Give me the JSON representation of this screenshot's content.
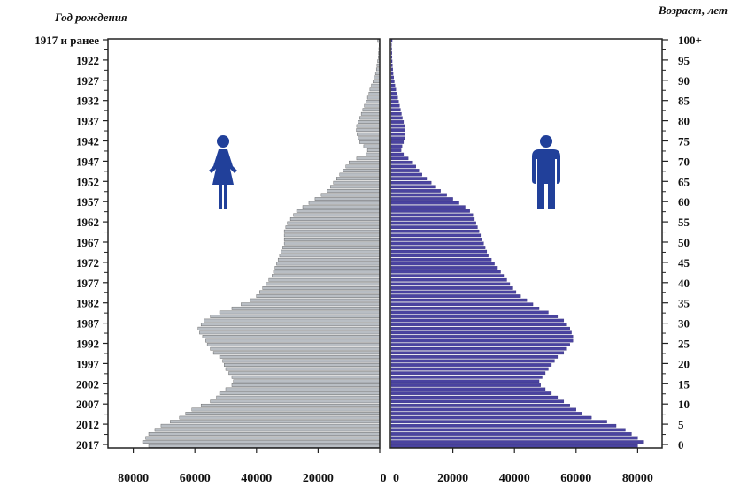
{
  "chart_data": {
    "type": "bar",
    "orientation": "horizontal",
    "layout": "population-pyramid",
    "left_axis_title": "Год рождения",
    "right_axis_title": "Возраст, лет",
    "left_tick_labels": [
      "1917 и ранее",
      "1922",
      "1927",
      "1932",
      "1937",
      "1942",
      "1947",
      "1952",
      "1957",
      "1962",
      "1967",
      "1972",
      "1977",
      "1982",
      "1987",
      "1992",
      "1997",
      "2002",
      "2007",
      "2012",
      "2017"
    ],
    "right_tick_labels": [
      "100+",
      "95",
      "90",
      "85",
      "80",
      "75",
      "70",
      "65",
      "60",
      "55",
      "50",
      "45",
      "40",
      "35",
      "30",
      "25",
      "20",
      "15",
      "10",
      "5",
      "0"
    ],
    "x_tick_labels_left": [
      "80000",
      "60000",
      "40000",
      "20000",
      "0"
    ],
    "x_tick_labels_right": [
      "0",
      "20000",
      "40000",
      "60000",
      "80000"
    ],
    "xlim": [
      0,
      85000
    ],
    "ages": [
      100,
      99,
      98,
      97,
      96,
      95,
      94,
      93,
      92,
      91,
      90,
      89,
      88,
      87,
      86,
      85,
      84,
      83,
      82,
      81,
      80,
      79,
      78,
      77,
      76,
      75,
      74,
      73,
      72,
      71,
      70,
      69,
      68,
      67,
      66,
      65,
      64,
      63,
      62,
      61,
      60,
      59,
      58,
      57,
      56,
      55,
      54,
      53,
      52,
      51,
      50,
      49,
      48,
      47,
      46,
      45,
      44,
      43,
      42,
      41,
      40,
      39,
      38,
      37,
      36,
      35,
      34,
      33,
      32,
      31,
      30,
      29,
      28,
      27,
      26,
      25,
      24,
      23,
      22,
      21,
      20,
      19,
      18,
      17,
      16,
      15,
      14,
      13,
      12,
      11,
      10,
      9,
      8,
      7,
      6,
      5,
      4,
      3,
      2,
      1,
      0
    ],
    "series": [
      {
        "name": "Женщины",
        "color": "#b9bec4",
        "values": [
          700,
          200,
          300,
          400,
          500,
          700,
          900,
          1100,
          1400,
          1800,
          2200,
          2700,
          3200,
          3500,
          4000,
          4500,
          5000,
          5500,
          6000,
          6500,
          7000,
          7500,
          7600,
          7400,
          7000,
          6500,
          5200,
          4000,
          4500,
          7500,
          10000,
          11000,
          12000,
          13000,
          14000,
          15000,
          16000,
          17000,
          19000,
          21000,
          23000,
          25000,
          27000,
          28000,
          29000,
          30000,
          30500,
          31000,
          31000,
          31000,
          31000,
          31500,
          32000,
          32500,
          33000,
          33500,
          34000,
          34500,
          35000,
          36000,
          37000,
          38000,
          39000,
          40000,
          42000,
          45000,
          48000,
          52000,
          55000,
          57000,
          58000,
          59000,
          58500,
          57500,
          56500,
          56000,
          55000,
          54000,
          52000,
          51000,
          50500,
          50000,
          49000,
          48000,
          47500,
          48000,
          50000,
          52000,
          53000,
          55000,
          58000,
          61000,
          63000,
          65000,
          68000,
          71000,
          73000,
          75000,
          76000,
          77000,
          75000
        ]
      },
      {
        "name": "Мужчины",
        "color": "#4a43a0",
        "values": [
          300,
          100,
          150,
          200,
          250,
          300,
          400,
          500,
          600,
          800,
          1000,
          1200,
          1500,
          1800,
          2100,
          2400,
          2700,
          3000,
          3300,
          3600,
          4000,
          4300,
          4500,
          4500,
          4300,
          4000,
          3500,
          3200,
          4000,
          5500,
          7000,
          8000,
          9000,
          10000,
          11500,
          13000,
          14500,
          16000,
          18000,
          20000,
          22000,
          24000,
          25500,
          26500,
          27000,
          27500,
          28000,
          28500,
          29000,
          29500,
          30000,
          30500,
          31000,
          31500,
          32500,
          33500,
          34500,
          35500,
          36500,
          37500,
          38500,
          39500,
          40500,
          42000,
          44000,
          46000,
          48000,
          51000,
          54000,
          56000,
          57000,
          58000,
          58500,
          59000,
          59000,
          58000,
          57000,
          56000,
          54000,
          53000,
          52000,
          51000,
          50000,
          49000,
          48000,
          48500,
          50000,
          52000,
          54000,
          56000,
          58000,
          60000,
          62000,
          65000,
          70000,
          73000,
          76000,
          78000,
          80000,
          82000,
          80000
        ]
      }
    ]
  },
  "icons": {
    "female": "woman-icon",
    "male": "man-icon",
    "icon_color": "#21409a"
  }
}
